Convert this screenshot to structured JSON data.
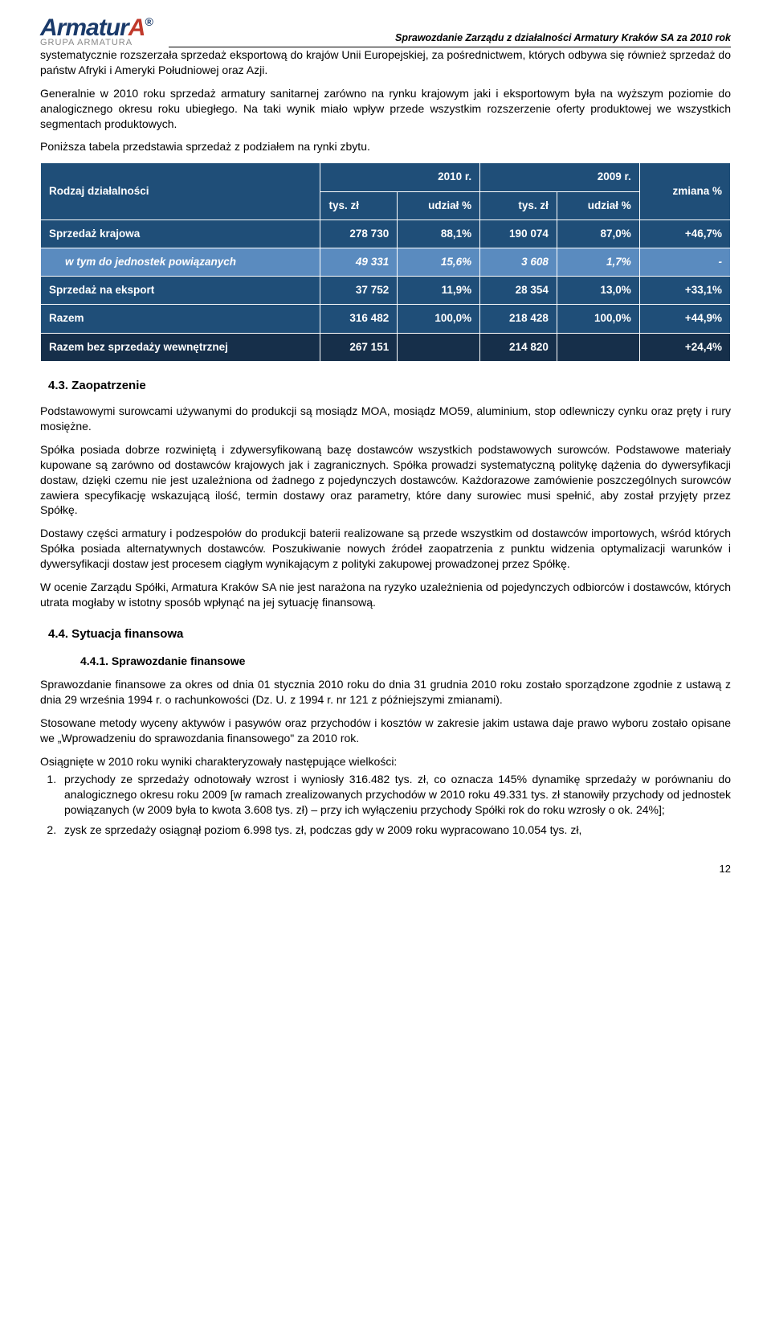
{
  "header": {
    "logo_top_1": "Armatur",
    "logo_top_2": "A",
    "logo_reg": "®",
    "logo_sub": "GRUPA ARMATURA",
    "title": "Sprawozdanie Zarządu z działalności Armatury Kraków SA za 2010 rok"
  },
  "paragraphs": {
    "p1": "systematycznie rozszerzała sprzedaż eksportową do krajów Unii Europejskiej, za pośrednictwem, których odbywa się również sprzedaż do państw Afryki i Ameryki Południowej oraz Azji.",
    "p2": "Generalnie w 2010 roku sprzedaż armatury sanitarnej zarówno na rynku krajowym jaki i eksportowym była na wyższym poziomie do analogicznego okresu roku ubiegłego. Na taki wynik miało wpływ przede wszystkim rozszerzenie oferty produktowej we wszystkich segmentach produktowych.",
    "p3": "Poniższa tabela przedstawia sprzedaż z podziałem na rynki zbytu."
  },
  "table": {
    "colors": {
      "header_bg": "#1f4e78",
      "row_dark_bg": "#1f4e78",
      "row_light_bg": "#5a8bbf",
      "row_darkest_bg": "#162f4a"
    },
    "headers": {
      "col1": "Rodzaj działalności",
      "y1": "2010 r.",
      "y2": "2009 r.",
      "change": "zmiana %",
      "tyszl": "tys. zł",
      "udzial": "udział %"
    },
    "rows": [
      {
        "label": "Sprzedaż krajowa",
        "v1": "278 730",
        "u1": "88,1%",
        "v2": "190 074",
        "u2": "87,0%",
        "ch": "+46,7%",
        "class": "row-dark"
      },
      {
        "label": "w tym do jednostek powiązanych",
        "v1": "49 331",
        "u1": "15,6%",
        "v2": "3 608",
        "u2": "1,7%",
        "ch": "-",
        "class": "row-light"
      },
      {
        "label": "Sprzedaż na eksport",
        "v1": "37 752",
        "u1": "11,9%",
        "v2": "28 354",
        "u2": "13,0%",
        "ch": "+33,1%",
        "class": "row-dark"
      },
      {
        "label": "Razem",
        "v1": "316 482",
        "u1": "100,0%",
        "v2": "218 428",
        "u2": "100,0%",
        "ch": "+44,9%",
        "class": "row-dark"
      },
      {
        "label": "Razem bez sprzedaży wewnętrznej",
        "v1": "267 151",
        "u1": "",
        "v2": "214 820",
        "u2": "",
        "ch": "+24,4%",
        "class": "row-darkest"
      }
    ]
  },
  "sections": {
    "s43": "4.3.  Zaopatrzenie",
    "s43_p1": "Podstawowymi surowcami używanymi do produkcji są mosiądz MOA, mosiądz MO59, aluminium, stop odlewniczy cynku oraz pręty i rury mosiężne.",
    "s43_p2": "Spółka posiada dobrze rozwiniętą i zdywersyfikowaną bazę dostawców wszystkich podstawowych surowców. Podstawowe materiały kupowane są zarówno od dostawców krajowych jak i zagranicznych. Spółka prowadzi systematyczną politykę dążenia do dywersyfikacji dostaw, dzięki czemu nie jest uzależniona od żadnego z pojedynczych dostawców. Każdorazowe zamówienie poszczególnych surowców zawiera specyfikację wskazującą ilość, termin dostawy oraz parametry, które dany surowiec musi spełnić, aby został przyjęty przez Spółkę.",
    "s43_p3": "Dostawy części armatury i podzespołów do produkcji baterii realizowane są przede wszystkim od dostawców importowych, wśród których Spółka posiada alternatywnych dostawców. Poszukiwanie nowych źródeł zaopatrzenia z punktu widzenia optymalizacji warunków i dywersyfikacji dostaw jest procesem ciągłym wynikającym z polityki zakupowej prowadzonej przez Spółkę.",
    "s43_p4": "W ocenie Zarządu Spółki, Armatura Kraków SA nie jest narażona na ryzyko uzależnienia od pojedynczych odbiorców i dostawców, których utrata mogłaby w istotny sposób wpłynąć na jej sytuację finansową.",
    "s44": "4.4.  Sytuacja finansowa",
    "s441": "4.4.1.  Sprawozdanie finansowe",
    "s44_p1": "Sprawozdanie finansowe za okres od dnia 01 stycznia 2010 roku do dnia 31 grudnia 2010 roku zostało sporządzone zgodnie z ustawą z dnia 29 września 1994 r. o rachunkowości (Dz. U. z 1994 r. nr 121 z późniejszymi zmianami).",
    "s44_p2": "Stosowane metody wyceny aktywów i pasywów oraz przychodów i kosztów w zakresie jakim ustawa daje prawo wyboru zostało opisane we „Wprowadzeniu do sprawozdania finansowego\" za 2010 rok.",
    "s44_p3": "Osiągnięte w 2010 roku wyniki charakteryzowały następujące wielkości:",
    "li1": "przychody ze sprzedaży odnotowały wzrost i wyniosły 316.482 tys. zł, co oznacza 145% dynamikę sprzedaży w porównaniu do analogicznego okresu roku 2009 [w ramach zrealizowanych przychodów w 2010 roku 49.331 tys. zł stanowiły przychody od jednostek powiązanych (w 2009 była to kwota 3.608 tys. zł) – przy ich wyłączeniu przychody Spółki rok do roku wzrosły o ok. 24%];",
    "li2": "zysk ze sprzedaży osiągnął poziom 6.998 tys. zł, podczas gdy w 2009 roku wypracowano 10.054 tys. zł,"
  },
  "page_num": "12"
}
